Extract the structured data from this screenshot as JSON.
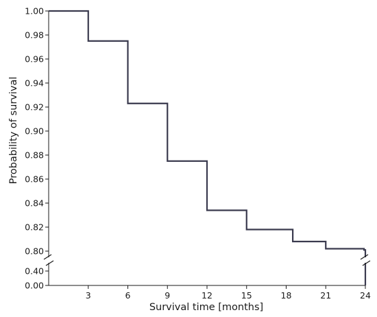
{
  "chart_data": {
    "type": "line",
    "step": true,
    "xlabel": "Survival time [months]",
    "ylabel": "Probability of survival",
    "xlim": [
      0,
      24
    ],
    "x_ticks": [
      3,
      6,
      9,
      12,
      15,
      18,
      21,
      24
    ],
    "x_tick_labels": [
      "3",
      "6",
      "9",
      "12",
      "15",
      "18",
      "21",
      "24"
    ],
    "y_axis_break": true,
    "y_lower_segment": {
      "range": [
        0.0,
        0.4
      ],
      "ticks": [
        0.0,
        0.4
      ],
      "tick_labels": [
        "0.00",
        "0.40"
      ]
    },
    "y_upper_segment": {
      "range": [
        0.8,
        1.0
      ],
      "ticks": [
        0.8,
        0.82,
        0.84,
        0.86,
        0.88,
        0.9,
        0.92,
        0.94,
        0.96,
        0.98,
        1.0
      ],
      "tick_labels": [
        "0.80",
        "0.82",
        "0.84",
        "0.86",
        "0.88",
        "0.90",
        "0.92",
        "0.94",
        "0.96",
        "0.98",
        "1.00"
      ]
    },
    "grid": false,
    "series": [
      {
        "color": "#3a3a4e",
        "x": [
          0,
          3,
          6,
          9,
          12,
          15,
          18.5,
          21,
          23.9,
          24
        ],
        "y": [
          1.0,
          0.975,
          0.923,
          0.875,
          0.834,
          0.818,
          0.808,
          0.802,
          0.801,
          0.0
        ]
      }
    ]
  }
}
